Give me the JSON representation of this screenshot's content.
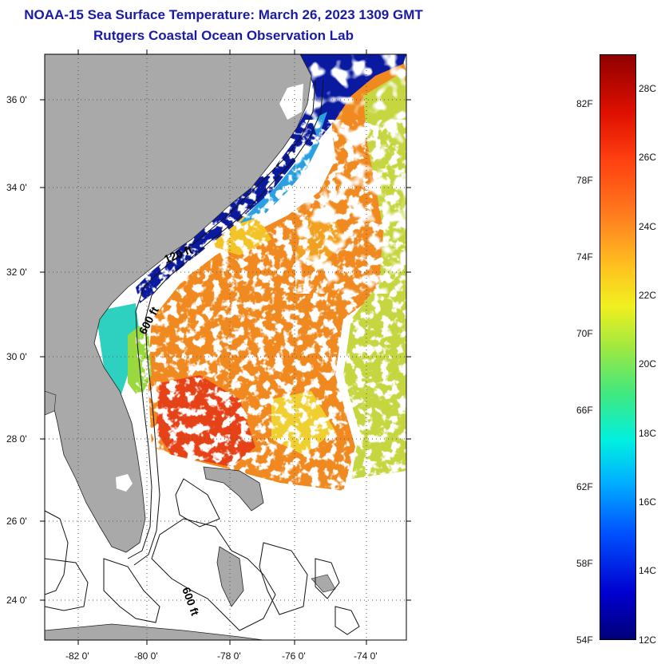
{
  "header": {
    "title": "NOAA-15 Sea Surface Temperature:  March 26, 2023 1309 GMT",
    "subtitle": "Rutgers Coastal Ocean Observation Lab"
  },
  "map": {
    "lat_labels": [
      "36 0'",
      "34 0'",
      "32 0'",
      "30 0'",
      "28 0'",
      "26 0'",
      "24 0'"
    ],
    "lon_labels": [
      "-82 0'",
      "-80 0'",
      "-78 0'",
      "-76 0'",
      "-74 0'"
    ],
    "contour_labels": [
      "120 ft",
      "600 ft",
      "600 ft"
    ],
    "colors": {
      "land": "#a9a9a9",
      "cloud": "#ffffff",
      "cold": "#0a1aa0",
      "warm": "#f08a20",
      "grid": "#555555"
    }
  },
  "colorbar": {
    "fahrenheit_labels": [
      "82F",
      "78F",
      "74F",
      "70F",
      "66F",
      "62F",
      "58F",
      "54F"
    ],
    "celsius_labels": [
      "28C",
      "26C",
      "24C",
      "22C",
      "20C",
      "18C",
      "16C",
      "14C",
      "12C"
    ],
    "range_c": [
      12,
      29.5
    ],
    "range_f": [
      54,
      85
    ]
  }
}
